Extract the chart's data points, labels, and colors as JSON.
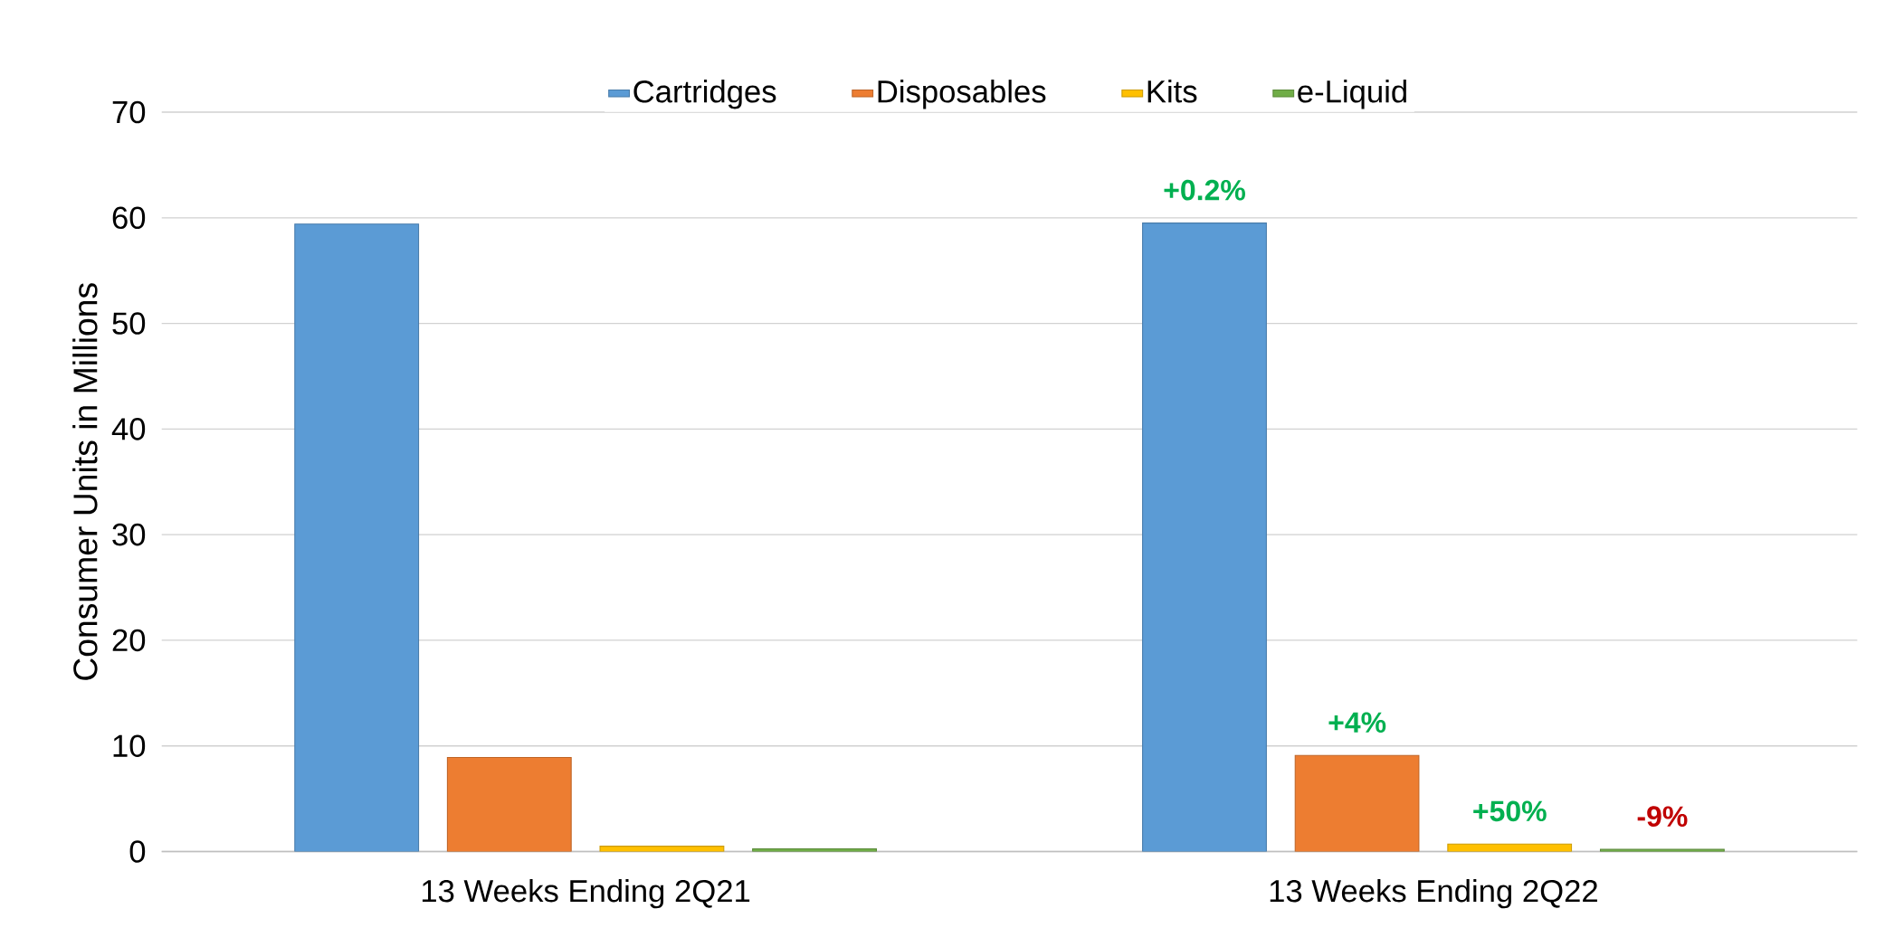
{
  "chart_data": {
    "type": "bar",
    "ylabel": "Consumer Units in Millions",
    "categories": [
      "13 Weeks Ending 2Q21",
      "13 Weeks Ending 2Q22"
    ],
    "series": [
      {
        "name": "Cartridges",
        "color": "#5b9bd5",
        "values": [
          59.4,
          59.5
        ]
      },
      {
        "name": "Disposables",
        "color": "#ed7d31",
        "values": [
          8.9,
          9.1
        ]
      },
      {
        "name": "Kits",
        "color": "#ffc000",
        "values": [
          0.5,
          0.7
        ]
      },
      {
        "name": "e-Liquid",
        "color": "#70ad47",
        "values": [
          0.25,
          0.2
        ]
      }
    ],
    "annotations": [
      "+0.2%",
      "+4%",
      "+50%",
      "-9%"
    ],
    "ylim": [
      0,
      70
    ],
    "yticks": [
      0,
      10,
      20,
      30,
      40,
      50,
      60,
      70
    ],
    "grid": "y",
    "legend": "top"
  }
}
